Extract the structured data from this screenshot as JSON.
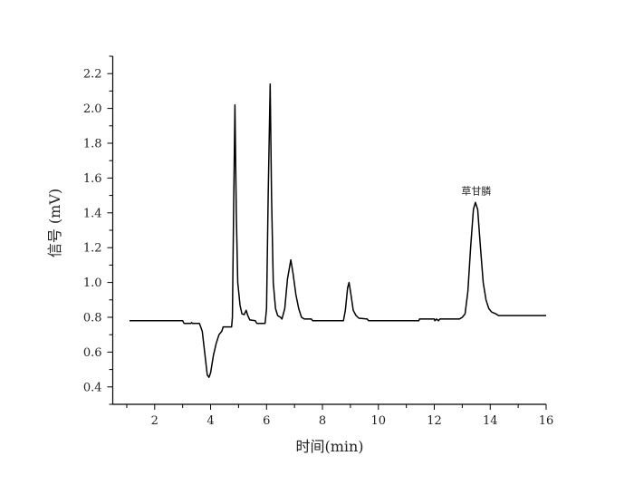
{
  "chart_data": {
    "type": "line",
    "title": "",
    "xlabel": "时间(min)",
    "ylabel": "信号 (mV)",
    "xlim": [
      0.5,
      16
    ],
    "ylim": [
      0.3,
      2.3
    ],
    "xticks": [
      2,
      4,
      6,
      8,
      10,
      12,
      14,
      16
    ],
    "yticks": [
      0.4,
      0.6,
      0.8,
      1.0,
      1.2,
      1.4,
      1.6,
      1.8,
      2.0,
      2.2
    ],
    "xtick_labels": [
      "2",
      "4",
      "6",
      "8",
      "10",
      "12",
      "14",
      "16"
    ],
    "ytick_labels": [
      "0.4",
      "0.6",
      "0.8",
      "1.0",
      "1.2",
      "1.4",
      "1.6",
      "1.8",
      "2.0",
      "2.2"
    ],
    "grid": false,
    "line_color": "#000000",
    "annotations": [
      {
        "text": "草甘膦",
        "x": 13.47,
        "y": 1.46
      }
    ],
    "series": [
      {
        "points": [
          [
            1.1,
            0.78
          ],
          [
            3.0,
            0.78
          ],
          [
            3.05,
            0.765
          ],
          [
            3.3,
            0.765
          ],
          [
            3.32,
            0.77
          ],
          [
            3.35,
            0.765
          ],
          [
            3.6,
            0.765
          ],
          [
            3.7,
            0.72
          ],
          [
            3.8,
            0.58
          ],
          [
            3.88,
            0.47
          ],
          [
            3.94,
            0.455
          ],
          [
            4.0,
            0.48
          ],
          [
            4.1,
            0.58
          ],
          [
            4.2,
            0.65
          ],
          [
            4.3,
            0.7
          ],
          [
            4.4,
            0.72
          ],
          [
            4.45,
            0.745
          ],
          [
            4.75,
            0.745
          ],
          [
            4.78,
            0.8
          ],
          [
            4.82,
            1.4
          ],
          [
            4.87,
            2.02
          ],
          [
            4.92,
            1.4
          ],
          [
            4.97,
            1.0
          ],
          [
            5.05,
            0.87
          ],
          [
            5.12,
            0.82
          ],
          [
            5.2,
            0.815
          ],
          [
            5.27,
            0.84
          ],
          [
            5.33,
            0.81
          ],
          [
            5.4,
            0.785
          ],
          [
            5.6,
            0.78
          ],
          [
            5.65,
            0.765
          ],
          [
            5.95,
            0.765
          ],
          [
            6.0,
            0.85
          ],
          [
            6.06,
            1.5
          ],
          [
            6.13,
            2.14
          ],
          [
            6.18,
            1.5
          ],
          [
            6.24,
            1.0
          ],
          [
            6.32,
            0.85
          ],
          [
            6.4,
            0.81
          ],
          [
            6.5,
            0.8
          ],
          [
            6.55,
            0.79
          ],
          [
            6.65,
            0.85
          ],
          [
            6.75,
            1.02
          ],
          [
            6.87,
            1.13
          ],
          [
            6.95,
            1.05
          ],
          [
            7.05,
            0.93
          ],
          [
            7.15,
            0.85
          ],
          [
            7.25,
            0.8
          ],
          [
            7.35,
            0.79
          ],
          [
            7.6,
            0.79
          ],
          [
            7.65,
            0.78
          ],
          [
            8.75,
            0.78
          ],
          [
            8.82,
            0.84
          ],
          [
            8.9,
            0.97
          ],
          [
            8.95,
            1.0
          ],
          [
            9.02,
            0.93
          ],
          [
            9.1,
            0.84
          ],
          [
            9.2,
            0.81
          ],
          [
            9.3,
            0.795
          ],
          [
            9.6,
            0.79
          ],
          [
            9.65,
            0.78
          ],
          [
            11.45,
            0.78
          ],
          [
            11.47,
            0.79
          ],
          [
            12.0,
            0.79
          ],
          [
            12.02,
            0.78
          ],
          [
            12.08,
            0.79
          ],
          [
            12.15,
            0.78
          ],
          [
            12.2,
            0.79
          ],
          [
            12.9,
            0.79
          ],
          [
            13.0,
            0.8
          ],
          [
            13.1,
            0.82
          ],
          [
            13.2,
            0.95
          ],
          [
            13.3,
            1.2
          ],
          [
            13.4,
            1.42
          ],
          [
            13.47,
            1.46
          ],
          [
            13.55,
            1.42
          ],
          [
            13.65,
            1.2
          ],
          [
            13.75,
            1.0
          ],
          [
            13.85,
            0.9
          ],
          [
            13.95,
            0.85
          ],
          [
            14.05,
            0.83
          ],
          [
            14.2,
            0.82
          ],
          [
            14.3,
            0.81
          ],
          [
            14.6,
            0.81
          ],
          [
            16.0,
            0.81
          ]
        ]
      }
    ]
  }
}
